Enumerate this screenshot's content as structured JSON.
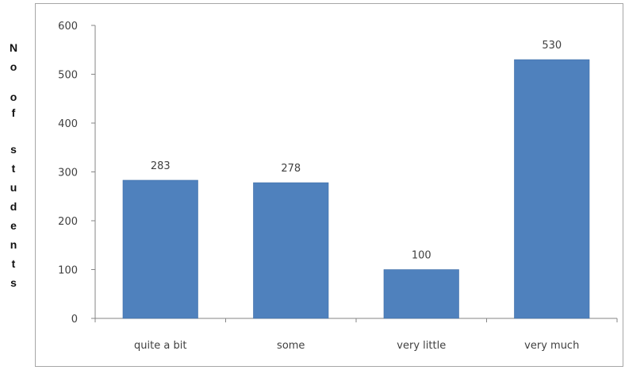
{
  "chart_data": {
    "type": "bar",
    "categories": [
      "quite a bit",
      "some",
      "very little",
      "very much"
    ],
    "values": [
      283,
      278,
      100,
      530
    ],
    "data_labels": [
      "283",
      "278",
      "100",
      "530"
    ],
    "ylabel": "No of students",
    "xlabel": "",
    "title": "",
    "ylim": [
      0,
      600
    ],
    "yticks": [
      0,
      100,
      200,
      300,
      400,
      500,
      600
    ],
    "grid": false,
    "legend": "none",
    "bar_color": "#4f81bd"
  }
}
